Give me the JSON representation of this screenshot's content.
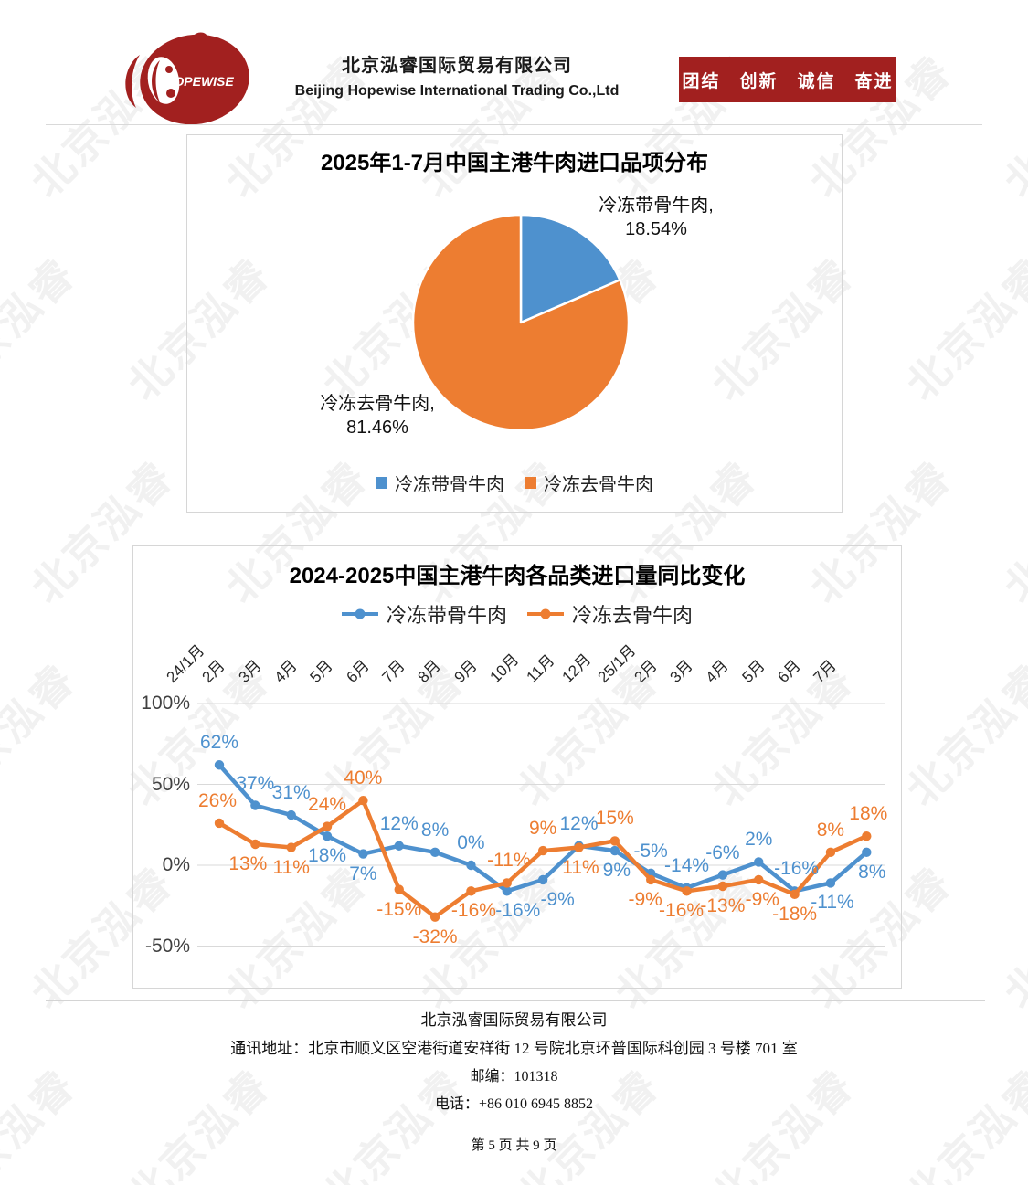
{
  "page": {
    "watermark_text": "北京泓睿"
  },
  "header": {
    "logo_text": "HOPEWISE",
    "company_cn": "北京泓睿国际贸易有限公司",
    "company_en": "Beijing Hopewise International Trading Co.,Ltd",
    "slogan": "团结　创新　诚信　奋进"
  },
  "colors": {
    "brand_red": "#A2201F",
    "series_blue": "#4E91CE",
    "series_orange": "#ED7D31",
    "grid": "#D9D9D9"
  },
  "chart_data": [
    {
      "type": "pie",
      "title": "2025年1-7月中国主港牛肉进口品项分布",
      "slices": [
        {
          "label": "冷冻带骨牛肉",
          "value": 18.54,
          "color": "#4E91CE"
        },
        {
          "label": "冷冻去骨牛肉",
          "value": 81.46,
          "color": "#ED7D31"
        }
      ],
      "callouts": [
        {
          "line1": "冷冻带骨牛肉,",
          "line2": "18.54%"
        },
        {
          "line1": "冷冻去骨牛肉,",
          "line2": "81.46%"
        }
      ],
      "legend": [
        "冷冻带骨牛肉",
        "冷冻去骨牛肉"
      ]
    },
    {
      "type": "line",
      "title": "2024-2025中国主港牛肉各品类进口量同比变化",
      "categories": [
        "24/1月",
        "2月",
        "3月",
        "4月",
        "5月",
        "6月",
        "7月",
        "8月",
        "9月",
        "10月",
        "11月",
        "12月",
        "25/1月",
        "2月",
        "3月",
        "4月",
        "5月",
        "6月",
        "7月"
      ],
      "y_ticks": [
        "100%",
        "50%",
        "0%",
        "-50%"
      ],
      "y_tick_values": [
        100,
        50,
        0,
        -50
      ],
      "legend_position": "top",
      "grid": true,
      "series": [
        {
          "name": "冷冻带骨牛肉",
          "color": "#4E91CE",
          "values": [
            62,
            37,
            31,
            18,
            7,
            12,
            8,
            0,
            -16,
            -9,
            12,
            9,
            -5,
            -14,
            -6,
            2,
            -16,
            -11,
            8
          ],
          "label_pos": [
            "a",
            "a",
            "a",
            "b",
            "b",
            "a",
            "a",
            "a",
            "b",
            "b",
            "a",
            "b",
            "a",
            "a",
            "a",
            "a",
            "a",
            "b",
            "b"
          ],
          "label_dx": [
            0,
            0,
            0,
            0,
            0,
            0,
            0,
            0,
            12,
            16,
            0,
            2,
            0,
            0,
            0,
            0,
            2,
            2,
            6
          ]
        },
        {
          "name": "冷冻去骨牛肉",
          "color": "#ED7D31",
          "values": [
            26,
            13,
            11,
            24,
            40,
            -15,
            -32,
            -16,
            -11,
            9,
            11,
            15,
            -9,
            -16,
            -13,
            -9,
            -18,
            8,
            18
          ],
          "label_pos": [
            "a",
            "b",
            "b",
            "a",
            "a",
            "b",
            "b",
            "b",
            "a",
            "a",
            "b",
            "a",
            "b",
            "b",
            "b",
            "b",
            "b",
            "a",
            "a"
          ],
          "label_dx": [
            -2,
            -8,
            0,
            0,
            0,
            0,
            0,
            3,
            2,
            0,
            2,
            0,
            -6,
            -6,
            0,
            4,
            0,
            0,
            2
          ]
        }
      ]
    }
  ],
  "footer": {
    "company": "北京泓睿国际贸易有限公司",
    "address": "通讯地址：北京市顺义区空港街道安祥街 12 号院北京环普国际科创园 3 号楼 701 室",
    "zip": "邮编：101318",
    "phone": "电话：+86 010 6945 8852",
    "page_number": "第 5 页 共 9 页"
  }
}
